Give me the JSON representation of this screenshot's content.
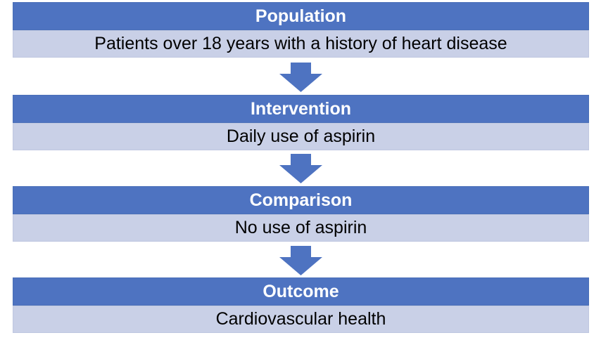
{
  "colors": {
    "header_fill": "#4e73c1",
    "body_fill": "#c9d0e7",
    "arrow_fill": "#4e73c1",
    "header_text": "#ffffff",
    "body_text": "#000000"
  },
  "steps": [
    {
      "title": "Population",
      "description": "Patients over 18 years with a history of heart disease"
    },
    {
      "title": "Intervention",
      "description": "Daily use of aspirin"
    },
    {
      "title": "Comparison",
      "description": "No use of aspirin"
    },
    {
      "title": "Outcome",
      "description": "Cardiovascular health"
    }
  ],
  "connectors": [
    "down-arrow-icon",
    "down-arrow-icon",
    "down-arrow-icon"
  ]
}
